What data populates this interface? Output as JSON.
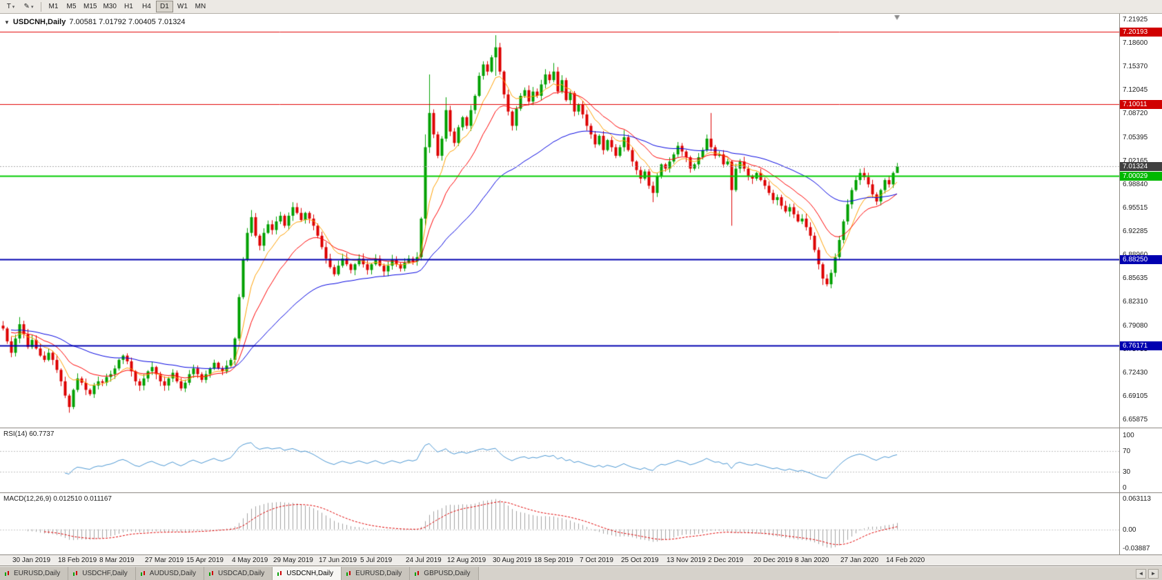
{
  "toolbar": {
    "template_button": {
      "label": "T",
      "caret": "▾"
    },
    "draw_button": {
      "label": "✎",
      "caret": "▾"
    },
    "timeframes": [
      {
        "label": "M1",
        "active": false
      },
      {
        "label": "M5",
        "active": false
      },
      {
        "label": "M15",
        "active": false
      },
      {
        "label": "M30",
        "active": false
      },
      {
        "label": "H1",
        "active": false
      },
      {
        "label": "H4",
        "active": false
      },
      {
        "label": "D1",
        "active": true
      },
      {
        "label": "W1",
        "active": false
      },
      {
        "label": "MN",
        "active": false
      }
    ]
  },
  "main_chart": {
    "dropdown_icon": "▼",
    "symbol_title": "USDCNH,Daily",
    "ohlc": "7.00581 7.01792 7.00405 7.01324",
    "price_axis_labels": [
      "7.21925",
      "7.18600",
      "7.15370",
      "7.12045",
      "7.08720",
      "7.05395",
      "7.02165",
      "6.98840",
      "6.95515",
      "6.92285",
      "6.88960",
      "6.85635",
      "6.82310",
      "6.79080",
      "6.75755",
      "6.72430",
      "6.69105",
      "6.65875"
    ],
    "current_price": {
      "label": "7.01324",
      "value": 7.01324,
      "badge_color": "#404040",
      "line_color": "#a8a8a8"
    }
  },
  "rsi_panel": {
    "label": "RSI(14) 60.7737",
    "axis_labels": [
      "100",
      "70",
      "30",
      "0"
    ],
    "axis_values": [
      100,
      70,
      30,
      0
    ],
    "level_lines": [
      70,
      30
    ],
    "line_color": "#4a96d2"
  },
  "macd_panel": {
    "label": "MACD(12,26,9) 0.012510 0.011167",
    "axis_labels": [
      "0.063113",
      "0.00",
      "-0.03887"
    ],
    "axis_values": [
      0.063113,
      0,
      -0.03887
    ],
    "histogram_color": "#a0a0a0",
    "signal_color": "#e00000"
  },
  "tab_bar": {
    "scroll_left": "◄",
    "scroll_right": "►",
    "tabs": [
      {
        "label": "EURUSD,Daily",
        "active": false
      },
      {
        "label": "USDCHF,Daily",
        "active": false
      },
      {
        "label": "AUDUSD,Daily",
        "active": false
      },
      {
        "label": "USDCAD,Daily",
        "active": false
      },
      {
        "label": "USDCNH,Daily",
        "active": true
      },
      {
        "label": "EURUSD,Daily",
        "active": false
      },
      {
        "label": "GBPUSD,Daily",
        "active": false
      }
    ]
  },
  "chart_data": {
    "type": "candlestick",
    "symbol": "USDCNH",
    "timeframe": "Daily",
    "ohlc_current": {
      "open": 7.00581,
      "high": 7.01792,
      "low": 7.00405,
      "close": 7.01324
    },
    "price_range": {
      "top": 7.21925,
      "bottom": 6.65875
    },
    "style": {
      "up_color": "#00A000",
      "down_color": "#DD0000",
      "shift_marker_color": "#8a8a8a"
    },
    "hlines": [
      {
        "price": 7.20193,
        "label": "7.20193",
        "color": "#e00000",
        "badge": "#d00000",
        "width": 1
      },
      {
        "price": 7.10011,
        "label": "7.10011",
        "color": "#e00000",
        "badge": "#d00000",
        "width": 1
      },
      {
        "price": 7.00029,
        "label": "7.00029",
        "color": "#00cc00",
        "badge": "#00b800",
        "width": 2
      },
      {
        "price": 6.8825,
        "label": "6.88250",
        "color": "#0000b0",
        "badge": "#0000b0",
        "width": 2
      },
      {
        "price": 6.76171,
        "label": "6.76171",
        "color": "#0000b0",
        "badge": "#0000b0",
        "width": 2
      }
    ],
    "indicators": {
      "ma_fast": {
        "period": 8,
        "color": "#ffa000"
      },
      "ma_mid": {
        "period": 17,
        "color": "#ff0000"
      },
      "ma_slow": {
        "period": 48,
        "color": "#0000e0"
      },
      "rsi": {
        "period": 14,
        "value": 60.7737
      },
      "macd": {
        "fast": 12,
        "slow": 26,
        "signal": 9,
        "macd_value": 0.01251,
        "signal_value": 0.011167
      }
    },
    "x_labels": [
      "30 Jan 2019",
      "18 Feb 2019",
      "8 Mar 2019",
      "27 Mar 2019",
      "15 Apr 2019",
      "4 May 2019",
      "29 May 2019",
      "17 Jun 2019",
      "5 Jul 2019",
      "24 Jul 2019",
      "12 Aug 2019",
      "30 Aug 2019",
      "18 Sep 2019",
      "7 Oct 2019",
      "25 Oct 2019",
      "13 Nov 2019",
      "2 Dec 2019",
      "20 Dec 2019",
      "8 Jan 2020",
      "27 Jan 2020",
      "14 Feb 2020"
    ],
    "x_label_bars": [
      3,
      14,
      24,
      35,
      45,
      56,
      66,
      77,
      87,
      98,
      108,
      119,
      129,
      140,
      150,
      161,
      171,
      182,
      192,
      203,
      214
    ],
    "closes": [
      6.786,
      6.768,
      6.752,
      6.772,
      6.792,
      6.778,
      6.76,
      6.77,
      6.758,
      6.748,
      6.742,
      6.752,
      6.742,
      6.728,
      6.712,
      6.692,
      6.676,
      6.7,
      6.716,
      6.71,
      6.7,
      6.694,
      6.706,
      6.712,
      6.71,
      6.718,
      6.722,
      6.73,
      6.742,
      6.748,
      6.74,
      6.726,
      6.712,
      6.706,
      6.716,
      6.726,
      6.732,
      6.722,
      6.712,
      6.706,
      6.716,
      6.724,
      6.712,
      6.702,
      6.71,
      6.722,
      6.73,
      6.722,
      6.714,
      6.722,
      6.73,
      6.738,
      6.73,
      6.726,
      6.734,
      6.742,
      6.772,
      6.83,
      6.882,
      6.92,
      6.942,
      6.916,
      6.902,
      6.92,
      6.932,
      6.924,
      6.936,
      6.944,
      6.93,
      6.944,
      6.956,
      6.948,
      6.938,
      6.948,
      6.94,
      6.93,
      6.916,
      6.9,
      6.884,
      6.872,
      6.862,
      6.874,
      6.884,
      6.876,
      6.868,
      6.876,
      6.884,
      6.876,
      6.868,
      6.876,
      6.884,
      6.874,
      6.866,
      6.874,
      6.882,
      6.876,
      6.87,
      6.878,
      6.884,
      6.88,
      6.886,
      6.94,
      7.04,
      7.088,
      7.058,
      7.028,
      7.052,
      7.092,
      7.062,
      7.046,
      7.068,
      7.082,
      7.07,
      7.092,
      7.112,
      7.14,
      7.156,
      7.146,
      7.166,
      7.18,
      7.146,
      7.114,
      7.09,
      7.07,
      7.094,
      7.112,
      7.12,
      7.104,
      7.118,
      7.112,
      7.128,
      7.142,
      7.134,
      7.146,
      7.118,
      7.134,
      7.106,
      7.116,
      7.09,
      7.1,
      7.086,
      7.07,
      7.058,
      7.044,
      7.056,
      7.036,
      7.05,
      7.04,
      7.028,
      7.04,
      7.054,
      7.036,
      7.02,
      7.008,
      6.996,
      7.006,
      6.986,
      6.976,
      7.0,
      7.016,
      7.01,
      7.02,
      7.03,
      7.042,
      7.034,
      7.026,
      7.01,
      7.016,
      7.026,
      7.036,
      7.052,
      7.04,
      7.028,
      7.03,
      7.016,
      7.02,
      6.98,
      7.01,
      7.02,
      7.01,
      7.0,
      6.996,
      7.004,
      6.994,
      6.986,
      6.976,
      6.966,
      6.97,
      6.958,
      6.95,
      6.956,
      6.946,
      6.936,
      6.94,
      6.928,
      6.916,
      6.896,
      6.876,
      6.856,
      6.848,
      6.864,
      6.886,
      6.91,
      6.936,
      6.96,
      6.98,
      6.994,
      7.004,
      6.998,
      6.988,
      6.974,
      6.964,
      6.98,
      6.994,
      6.988,
      7.004,
      7.01324
    ],
    "wick_overrides": [
      [
        4,
        6.802,
        null
      ],
      [
        16,
        null,
        6.668
      ],
      [
        60,
        6.952,
        null
      ],
      [
        70,
        6.963,
        null
      ],
      [
        102,
        7.058,
        6.93
      ],
      [
        103,
        7.142,
        7.032
      ],
      [
        107,
        7.11,
        null
      ],
      [
        119,
        7.197,
        7.14
      ],
      [
        133,
        7.158,
        null
      ],
      [
        150,
        7.064,
        null
      ],
      [
        157,
        null,
        6.963
      ],
      [
        171,
        7.088,
        null
      ],
      [
        176,
        null,
        6.93
      ],
      [
        198,
        null,
        6.847
      ],
      [
        199,
        null,
        6.845
      ],
      [
        216,
        7.018,
        7.004
      ]
    ]
  }
}
